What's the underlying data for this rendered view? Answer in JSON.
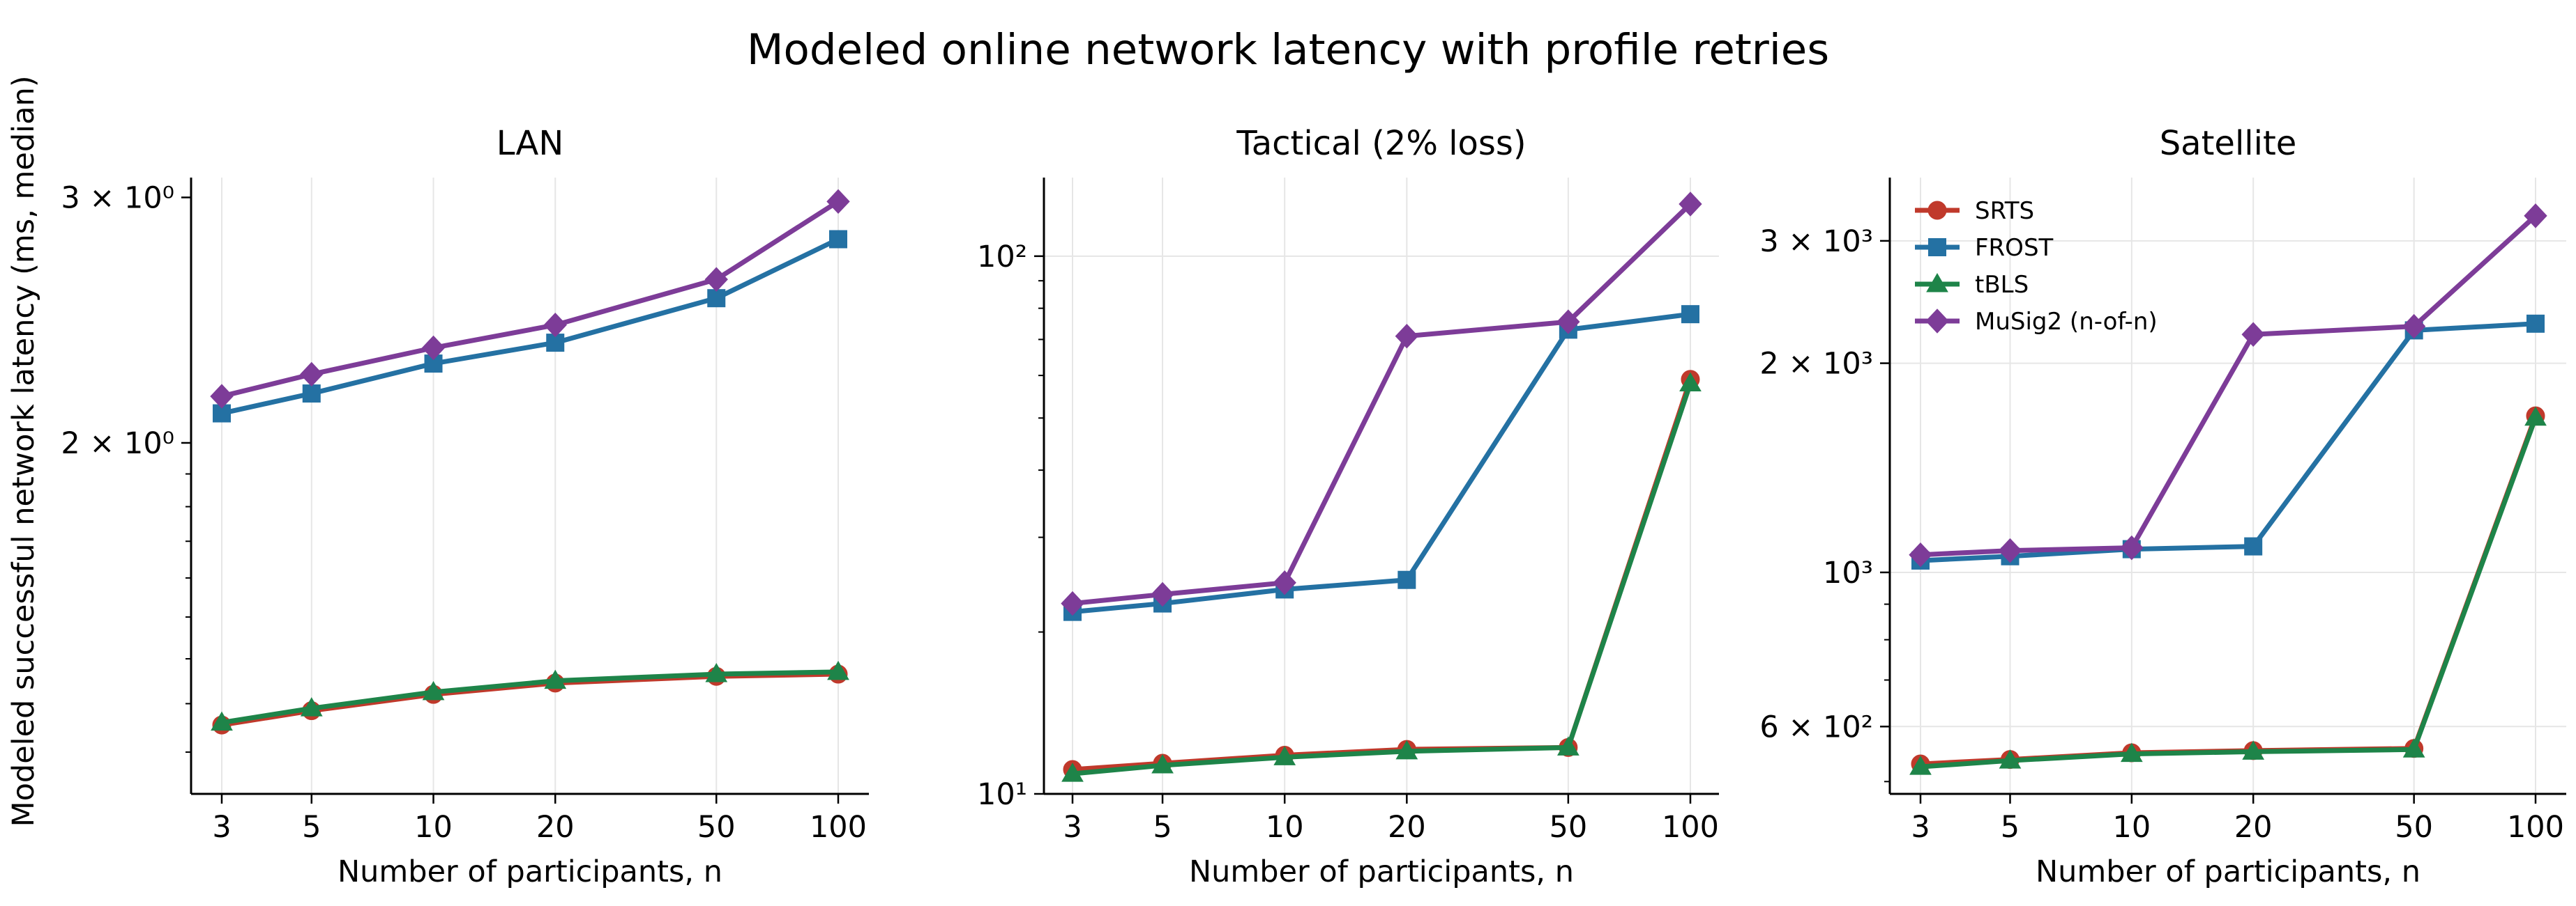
{
  "figure": {
    "title": "Modeled online network latency with profile retries",
    "ylabel": "Modeled successful network latency (ms, median)"
  },
  "legend": {
    "placement": "top-left of Satellite panel",
    "entries": [
      {
        "label": "SRTS",
        "color": "#c0392b",
        "marker": "circle"
      },
      {
        "label": "FROST",
        "color": "#2471a3",
        "marker": "square"
      },
      {
        "label": "tBLS",
        "color": "#1e8449",
        "marker": "triangle"
      },
      {
        "label": "MuSig2 (n-of-n)",
        "color": "#7d3c98",
        "marker": "diamond"
      }
    ]
  },
  "chart_data": [
    {
      "type": "line",
      "title": "LAN",
      "xlabel": "Number of participants, n",
      "xscale": "log",
      "yscale": "log",
      "x": [
        3,
        5,
        10,
        20,
        50,
        100
      ],
      "xticks": [
        "3",
        "5",
        "10",
        "20",
        "50",
        "100"
      ],
      "ylim": [
        1.12,
        3.1
      ],
      "yticks": [
        {
          "value": 2,
          "label": "2 × 10⁰"
        },
        {
          "value": 3,
          "label": "3 × 10⁰"
        }
      ],
      "grid": "vertical",
      "series": [
        {
          "name": "SRTS",
          "values": [
            1.255,
            1.285,
            1.32,
            1.345,
            1.36,
            1.365
          ]
        },
        {
          "name": "FROST",
          "values": [
            2.1,
            2.17,
            2.28,
            2.36,
            2.54,
            2.8
          ]
        },
        {
          "name": "tBLS",
          "values": [
            1.26,
            1.29,
            1.325,
            1.35,
            1.365,
            1.37
          ]
        },
        {
          "name": "MuSig2 (n-of-n)",
          "values": [
            2.16,
            2.24,
            2.34,
            2.43,
            2.62,
            2.98
          ]
        }
      ]
    },
    {
      "type": "line",
      "title": "Tactical (2% loss)",
      "xlabel": "Number of participants, n",
      "xscale": "log",
      "yscale": "log",
      "x": [
        3,
        5,
        10,
        20,
        50,
        100
      ],
      "xticks": [
        "3",
        "5",
        "10",
        "20",
        "50",
        "100"
      ],
      "ylim": [
        10,
        140
      ],
      "yticks": [
        {
          "value": 10,
          "label": "10¹"
        },
        {
          "value": 100,
          "label": "10²"
        }
      ],
      "grid": "both",
      "series": [
        {
          "name": "SRTS",
          "values": [
            11.1,
            11.4,
            11.8,
            12.1,
            12.2,
            59
          ]
        },
        {
          "name": "FROST",
          "values": [
            21.8,
            22.6,
            24.0,
            25.0,
            73,
            78
          ]
        },
        {
          "name": "tBLS",
          "values": [
            10.9,
            11.3,
            11.7,
            12.0,
            12.2,
            58
          ]
        },
        {
          "name": "MuSig2 (n-of-n)",
          "values": [
            22.6,
            23.5,
            24.7,
            71,
            75.5,
            125
          ]
        }
      ]
    },
    {
      "type": "line",
      "title": "Satellite",
      "xlabel": "Number of participants, n",
      "xscale": "log",
      "yscale": "log",
      "x": [
        3,
        5,
        10,
        20,
        50,
        100
      ],
      "xticks": [
        "3",
        "5",
        "10",
        "20",
        "50",
        "100"
      ],
      "ylim": [
        480,
        3700
      ],
      "yticks": [
        {
          "value": 600,
          "label": "6 × 10²"
        },
        {
          "value": 1000,
          "label": "10³"
        },
        {
          "value": 2000,
          "label": "2 × 10³"
        },
        {
          "value": 3000,
          "label": "3 × 10³"
        }
      ],
      "grid": "both",
      "series": [
        {
          "name": "SRTS",
          "values": [
            530,
            538,
            550,
            554,
            558,
            1680
          ]
        },
        {
          "name": "FROST",
          "values": [
            1040,
            1055,
            1080,
            1090,
            2230,
            2280
          ]
        },
        {
          "name": "tBLS",
          "values": [
            525,
            536,
            548,
            552,
            556,
            1670
          ]
        },
        {
          "name": "MuSig2 (n-of-n)",
          "values": [
            1060,
            1075,
            1085,
            2200,
            2260,
            3260
          ]
        }
      ]
    }
  ]
}
